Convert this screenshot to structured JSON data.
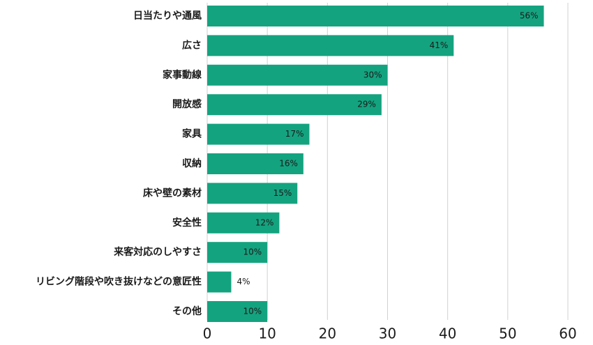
{
  "chart_data": {
    "type": "bar",
    "orientation": "horizontal",
    "title": "",
    "xlabel": "",
    "ylabel": "",
    "categories": [
      "日当たりや通風",
      "広さ",
      "家事動線",
      "開放感",
      "家具",
      "収納",
      "床や壁の素材",
      "安全性",
      "来客対応のしやすさ",
      "リビング階段や吹き抜けなどの意匠性",
      "その他"
    ],
    "values": [
      56,
      41,
      30,
      29,
      17,
      16,
      15,
      12,
      10,
      4,
      10
    ],
    "data_labels": [
      "56%",
      "41%",
      "30%",
      "29%",
      "17%",
      "16%",
      "15%",
      "12%",
      "10%",
      "4%",
      "10%"
    ],
    "xlim": [
      0,
      60
    ],
    "xticks": [
      "0",
      "10",
      "20",
      "30",
      "40",
      "50",
      "60"
    ],
    "grid": "vertical",
    "legend": "none",
    "bar_color": "#14a37f",
    "grid_color": "#d0d0d0",
    "text_color": "#1a1a1a"
  }
}
